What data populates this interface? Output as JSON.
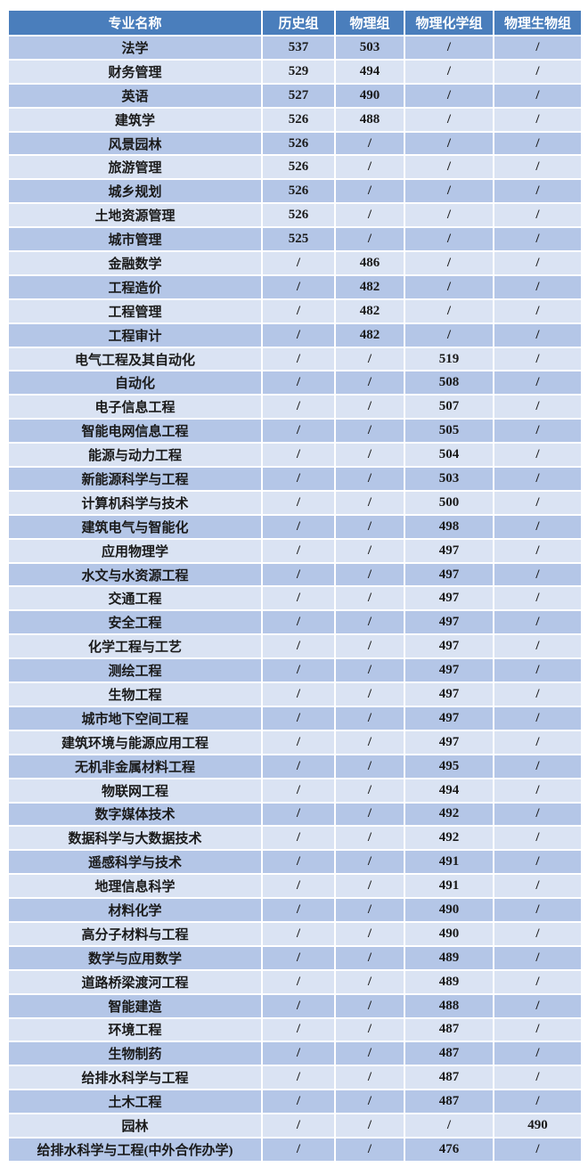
{
  "colors": {
    "header_bg": "#4a7ebc",
    "header_text": "#ffffff",
    "row_odd_bg": "#b4c6e7",
    "row_even_bg": "#dae3f3",
    "cell_text": "#1a1a1a",
    "border_color": "#ffffff"
  },
  "chart_data": {
    "type": "table",
    "columns": [
      "专业名称",
      "历史组",
      "物理组",
      "物理化学组",
      "物理生物组"
    ],
    "missing_value_symbol": "/",
    "rows": [
      [
        "法学",
        "537",
        "503",
        "/",
        "/"
      ],
      [
        "财务管理",
        "529",
        "494",
        "/",
        "/"
      ],
      [
        "英语",
        "527",
        "490",
        "/",
        "/"
      ],
      [
        "建筑学",
        "526",
        "488",
        "/",
        "/"
      ],
      [
        "风景园林",
        "526",
        "/",
        "/",
        "/"
      ],
      [
        "旅游管理",
        "526",
        "/",
        "/",
        "/"
      ],
      [
        "城乡规划",
        "526",
        "/",
        "/",
        "/"
      ],
      [
        "土地资源管理",
        "526",
        "/",
        "/",
        "/"
      ],
      [
        "城市管理",
        "525",
        "/",
        "/",
        "/"
      ],
      [
        "金融数学",
        "/",
        "486",
        "/",
        "/"
      ],
      [
        "工程造价",
        "/",
        "482",
        "/",
        "/"
      ],
      [
        "工程管理",
        "/",
        "482",
        "/",
        "/"
      ],
      [
        "工程审计",
        "/",
        "482",
        "/",
        "/"
      ],
      [
        "电气工程及其自动化",
        "/",
        "/",
        "519",
        "/"
      ],
      [
        "自动化",
        "/",
        "/",
        "508",
        "/"
      ],
      [
        "电子信息工程",
        "/",
        "/",
        "507",
        "/"
      ],
      [
        "智能电网信息工程",
        "/",
        "/",
        "505",
        "/"
      ],
      [
        "能源与动力工程",
        "/",
        "/",
        "504",
        "/"
      ],
      [
        "新能源科学与工程",
        "/",
        "/",
        "503",
        "/"
      ],
      [
        "计算机科学与技术",
        "/",
        "/",
        "500",
        "/"
      ],
      [
        "建筑电气与智能化",
        "/",
        "/",
        "498",
        "/"
      ],
      [
        "应用物理学",
        "/",
        "/",
        "497",
        "/"
      ],
      [
        "水文与水资源工程",
        "/",
        "/",
        "497",
        "/"
      ],
      [
        "交通工程",
        "/",
        "/",
        "497",
        "/"
      ],
      [
        "安全工程",
        "/",
        "/",
        "497",
        "/"
      ],
      [
        "化学工程与工艺",
        "/",
        "/",
        "497",
        "/"
      ],
      [
        "测绘工程",
        "/",
        "/",
        "497",
        "/"
      ],
      [
        "生物工程",
        "/",
        "/",
        "497",
        "/"
      ],
      [
        "城市地下空间工程",
        "/",
        "/",
        "497",
        "/"
      ],
      [
        "建筑环境与能源应用工程",
        "/",
        "/",
        "497",
        "/"
      ],
      [
        "无机非金属材料工程",
        "/",
        "/",
        "495",
        "/"
      ],
      [
        "物联网工程",
        "/",
        "/",
        "494",
        "/"
      ],
      [
        "数字媒体技术",
        "/",
        "/",
        "492",
        "/"
      ],
      [
        "数据科学与大数据技术",
        "/",
        "/",
        "492",
        "/"
      ],
      [
        "遥感科学与技术",
        "/",
        "/",
        "491",
        "/"
      ],
      [
        "地理信息科学",
        "/",
        "/",
        "491",
        "/"
      ],
      [
        "材料化学",
        "/",
        "/",
        "490",
        "/"
      ],
      [
        "高分子材料与工程",
        "/",
        "/",
        "490",
        "/"
      ],
      [
        "数学与应用数学",
        "/",
        "/",
        "489",
        "/"
      ],
      [
        "道路桥梁渡河工程",
        "/",
        "/",
        "489",
        "/"
      ],
      [
        "智能建造",
        "/",
        "/",
        "488",
        "/"
      ],
      [
        "环境工程",
        "/",
        "/",
        "487",
        "/"
      ],
      [
        "生物制药",
        "/",
        "/",
        "487",
        "/"
      ],
      [
        "给排水科学与工程",
        "/",
        "/",
        "487",
        "/"
      ],
      [
        "土木工程",
        "/",
        "/",
        "487",
        "/"
      ],
      [
        "园林",
        "/",
        "/",
        "/",
        "490"
      ],
      [
        "给排水科学与工程(中外合作办学)",
        "/",
        "/",
        "476",
        "/"
      ]
    ]
  }
}
